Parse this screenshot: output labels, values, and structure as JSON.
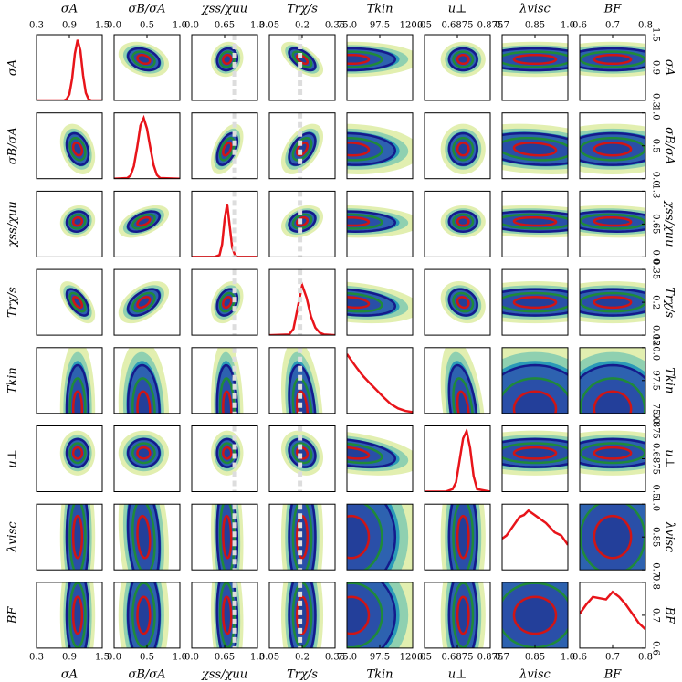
{
  "chart_data": {
    "type": "corner",
    "params": [
      {
        "label": "σA",
        "lim": [
          0.3,
          1.5
        ],
        "ticks": [
          0.3,
          0.9,
          1.5
        ],
        "center": 1.05,
        "width": 0.1,
        "curve": {
          "x": [
            0.3,
            0.8,
            0.85,
            0.9,
            0.95,
            1.0,
            1.05,
            1.1,
            1.15,
            1.2,
            1.25,
            1.3,
            1.5
          ],
          "y": [
            0,
            0,
            0.02,
            0.1,
            0.35,
            0.75,
            0.97,
            0.8,
            0.4,
            0.12,
            0.02,
            0,
            0
          ]
        }
      },
      {
        "label": "σB/σA",
        "lim": [
          0,
          1
        ],
        "ticks": [
          {
            "value": 0,
            "label": "0.0"
          },
          0.5,
          {
            "value": 1,
            "label": "1.0"
          }
        ],
        "center": 0.45,
        "width": 0.12,
        "curve": {
          "x": [
            0,
            0.2,
            0.25,
            0.3,
            0.35,
            0.4,
            0.45,
            0.5,
            0.55,
            0.6,
            0.65,
            0.7,
            1.0
          ],
          "y": [
            0,
            0.01,
            0.05,
            0.2,
            0.5,
            0.85,
            0.97,
            0.8,
            0.5,
            0.22,
            0.06,
            0.01,
            0
          ]
        }
      },
      {
        "label": "χss/χuu",
        "lim": [
          0,
          1.3
        ],
        "ticks": [
          {
            "value": 0,
            "label": "0.0"
          },
          0.65,
          1.3
        ],
        "center": 0.7,
        "width": 0.1,
        "ref": 0.85,
        "curve": {
          "x": [
            0,
            0.45,
            0.55,
            0.6,
            0.65,
            0.7,
            0.75,
            0.8,
            0.85,
            0.9,
            1.3
          ],
          "y": [
            0,
            0,
            0.03,
            0.2,
            0.6,
            0.85,
            0.5,
            0.15,
            0.04,
            0,
            0
          ]
        }
      },
      {
        "label": "Trχ/s",
        "lim": [
          0.05,
          0.35
        ],
        "ticks": [
          0.05,
          0.2,
          0.35
        ],
        "center": 0.2,
        "width": 0.03,
        "ref": 0.19,
        "curve": {
          "x": [
            0.05,
            0.14,
            0.16,
            0.18,
            0.2,
            0.22,
            0.24,
            0.26,
            0.28,
            0.3,
            0.35
          ],
          "y": [
            0,
            0.01,
            0.1,
            0.45,
            0.8,
            0.6,
            0.3,
            0.12,
            0.04,
            0.01,
            0
          ]
        }
      },
      {
        "label": "Tkin",
        "lim": [
          75,
          120
        ],
        "ticks": [
          {
            "value": 75,
            "label": "75.0"
          },
          97.5,
          {
            "value": 120,
            "label": "120.0"
          }
        ],
        "center": 78,
        "width": 15,
        "curve": {
          "x": [
            75,
            78,
            82,
            86,
            90,
            95,
            100,
            105,
            110,
            115,
            120
          ],
          "y": [
            0.95,
            0.85,
            0.72,
            0.6,
            0.5,
            0.38,
            0.26,
            0.15,
            0.08,
            0.04,
            0.02
          ]
        }
      },
      {
        "label": "u⊥",
        "lim": [
          0.5,
          0.875
        ],
        "ticks": [
          0.5,
          0.6875,
          0.875
        ],
        "center": 0.72,
        "width": 0.04,
        "curve": {
          "x": [
            0.5,
            0.62,
            0.66,
            0.68,
            0.7,
            0.72,
            0.74,
            0.76,
            0.78,
            0.8,
            0.875
          ],
          "y": [
            0,
            0,
            0.04,
            0.15,
            0.5,
            0.85,
            0.97,
            0.7,
            0.25,
            0.04,
            0
          ]
        }
      },
      {
        "label": "λvisc",
        "lim": [
          0.7,
          1
        ],
        "ticks": [
          0.7,
          0.85,
          {
            "value": 1,
            "label": "1.0"
          }
        ],
        "center": 0.85,
        "width": 0.12,
        "curve": {
          "x": [
            0.7,
            0.72,
            0.75,
            0.78,
            0.8,
            0.82,
            0.84,
            0.86,
            0.9,
            0.94,
            0.97,
            1.0
          ],
          "y": [
            0.5,
            0.55,
            0.7,
            0.85,
            0.88,
            0.95,
            0.9,
            0.85,
            0.75,
            0.6,
            0.55,
            0.4
          ]
        }
      },
      {
        "label": "BF",
        "lim": [
          0.6,
          0.8
        ],
        "ticks": [
          0.6,
          0.7,
          0.8
        ],
        "center": 0.7,
        "width": 0.07,
        "curve": {
          "x": [
            0.6,
            0.62,
            0.64,
            0.66,
            0.68,
            0.7,
            0.72,
            0.74,
            0.76,
            0.78,
            0.8
          ],
          "y": [
            0.55,
            0.7,
            0.82,
            0.8,
            0.78,
            0.9,
            0.82,
            0.7,
            0.55,
            0.4,
            0.3
          ]
        }
      }
    ],
    "pairs": [
      {
        "params": [
          0,
          1
        ],
        "rho": -0.3
      },
      {
        "params": [
          0,
          2
        ],
        "rho": 0.1
      },
      {
        "params": [
          0,
          3
        ],
        "rho": -0.6
      },
      {
        "params": [
          0,
          4
        ],
        "rho": 0
      },
      {
        "params": [
          0,
          5
        ],
        "rho": 0
      },
      {
        "params": [
          0,
          6
        ],
        "rho": 0
      },
      {
        "params": [
          0,
          7
        ],
        "rho": 0
      },
      {
        "params": [
          1,
          2
        ],
        "rho": 0.5
      },
      {
        "params": [
          1,
          3
        ],
        "rho": 0.5
      },
      {
        "params": [
          1,
          4
        ],
        "rho": -0.1
      },
      {
        "params": [
          1,
          5
        ],
        "rho": 0
      },
      {
        "params": [
          1,
          6
        ],
        "rho": -0.2
      },
      {
        "params": [
          1,
          7
        ],
        "rho": 0
      },
      {
        "params": [
          2,
          3
        ],
        "rho": 0.3
      },
      {
        "params": [
          2,
          4
        ],
        "rho": -0.1
      },
      {
        "params": [
          2,
          5
        ],
        "rho": 0
      },
      {
        "params": [
          2,
          6
        ],
        "rho": -0.1
      },
      {
        "params": [
          2,
          7
        ],
        "rho": -0.1
      },
      {
        "params": [
          3,
          4
        ],
        "rho": -0.3
      },
      {
        "params": [
          3,
          5
        ],
        "rho": -0.2
      },
      {
        "params": [
          3,
          6
        ],
        "rho": 0
      },
      {
        "params": [
          3,
          7
        ],
        "rho": 0
      },
      {
        "params": [
          4,
          5
        ],
        "rho": -0.4
      },
      {
        "params": [
          4,
          6
        ],
        "rho": 0
      },
      {
        "params": [
          4,
          7
        ],
        "rho": 0
      },
      {
        "params": [
          5,
          6
        ],
        "rho": 0
      },
      {
        "params": [
          5,
          7
        ],
        "rho": 0
      },
      {
        "params": [
          6,
          7
        ],
        "rho": 0
      }
    ]
  }
}
